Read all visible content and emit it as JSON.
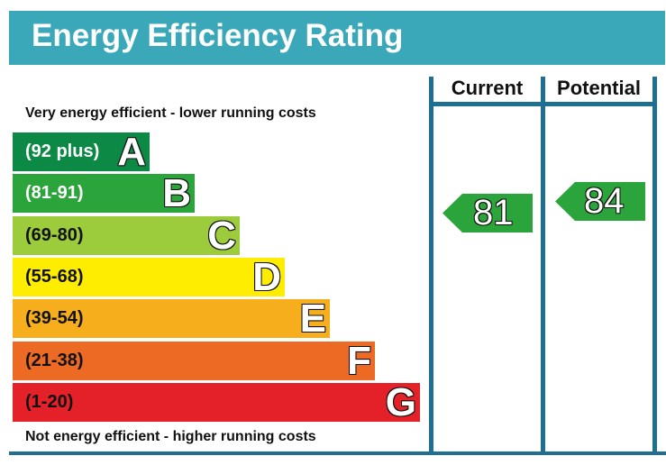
{
  "title": "Energy Efficiency Rating",
  "top_note": "Very energy efficient - lower running costs",
  "bottom_note": "Not energy efficient - higher running costs",
  "columns": {
    "current": "Current",
    "potential": "Potential"
  },
  "colors": {
    "title_bg": "#3aa8b8",
    "frame": "#1f6f93"
  },
  "chart_data": {
    "type": "bar",
    "title": "Energy Efficiency Rating",
    "categories": [
      "A",
      "B",
      "C",
      "D",
      "E",
      "F",
      "G"
    ],
    "bands": [
      {
        "letter": "A",
        "range": "(92 plus)",
        "color": "#0c8a45",
        "text_color": "#ffffff"
      },
      {
        "letter": "B",
        "range": "(81-91)",
        "color": "#2ba53b",
        "text_color": "#ffffff"
      },
      {
        "letter": "C",
        "range": "(69-80)",
        "color": "#9ccb3b",
        "text_color": "#111111"
      },
      {
        "letter": "D",
        "range": "(55-68)",
        "color": "#ffed00",
        "text_color": "#111111"
      },
      {
        "letter": "E",
        "range": "(39-54)",
        "color": "#f7ae1d",
        "text_color": "#111111"
      },
      {
        "letter": "F",
        "range": "(21-38)",
        "color": "#ec6a24",
        "text_color": "#111111"
      },
      {
        "letter": "G",
        "range": "(1-20)",
        "color": "#e42029",
        "text_color": "#111111"
      }
    ],
    "current": {
      "value": 81,
      "band": "B",
      "color": "#2ba53b"
    },
    "potential": {
      "value": 84,
      "band": "B",
      "color": "#2ba53b"
    }
  }
}
